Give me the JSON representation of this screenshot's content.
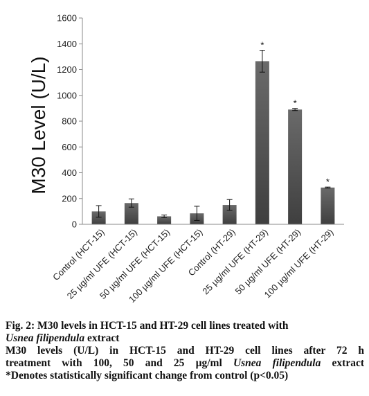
{
  "chart_data": {
    "type": "bar",
    "title": "",
    "xlabel": "",
    "ylabel": "M30 Level (U/L)",
    "ylim": [
      0,
      1600
    ],
    "yticks": [
      0,
      200,
      400,
      600,
      800,
      1000,
      1200,
      1400,
      1600
    ],
    "categories": [
      "Control (HCT-15)",
      "25 µg/ml UFE (HCT-15)",
      "50 µg/ml UFE (HCT-15)",
      "100 µg/ml UFE (HCT-15)",
      "Control (HT-29)",
      "25 µg/ml UFE (HT-29)",
      "50 µg/ml UFE (HT-29)",
      "100 µg/ml UFE (HT-29)"
    ],
    "values": [
      100,
      165,
      62,
      85,
      150,
      1265,
      890,
      285
    ],
    "errors": [
      45,
      32,
      10,
      55,
      42,
      85,
      8,
      4
    ],
    "significance": [
      "",
      "",
      "",
      "",
      "",
      "*",
      "*",
      "*"
    ],
    "grid": false,
    "bar_color": "#555555"
  },
  "caption": {
    "fig_label": "Fig. 2: M30 levels in HCT-15 and HT-29 cell lines treated with",
    "fig_species": "Usnea filipendula",
    "fig_suffix": " extract",
    "line3": "M30 levels (U/L) in HCT-15 and HT-29 cell lines after 72 h",
    "line4_prefix": "treatment with 100, 50 and 25 µg/ml ",
    "line4_species": "Usnea filipendula",
    "line4_suffix": " extract",
    "line5": "*Denotes statistically significant change from control (p<0.05)"
  }
}
